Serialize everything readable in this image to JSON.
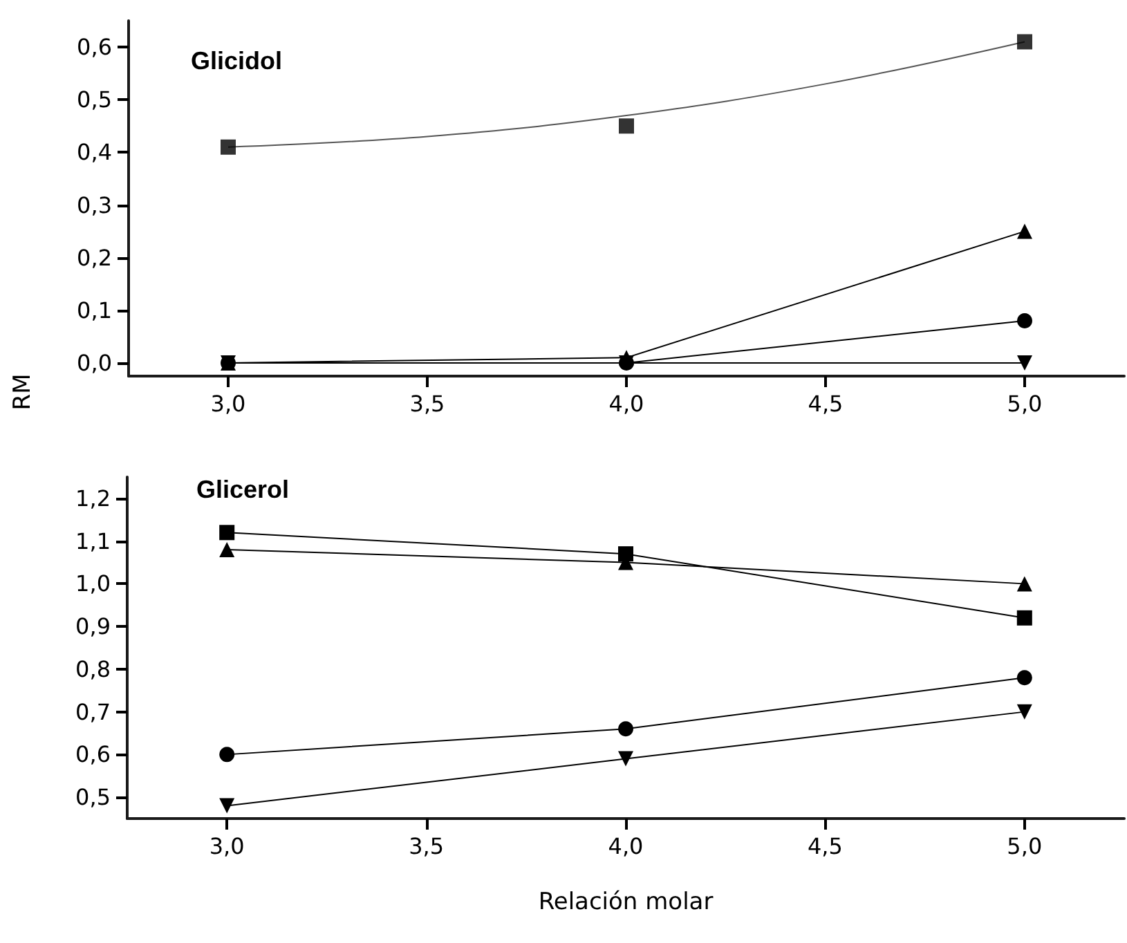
{
  "chart_data": [
    {
      "type": "line",
      "ylabel": "RM",
      "annotations": [
        "Glicidol"
      ],
      "x": [
        3.0,
        4.0,
        5.0
      ],
      "xlim": [
        2.75,
        5.25
      ],
      "xticks": [
        {
          "value": 3.0,
          "label": "3,0"
        },
        {
          "value": 3.5,
          "label": "3,5"
        },
        {
          "value": 4.0,
          "label": "4,0"
        },
        {
          "value": 4.5,
          "label": "4,5"
        },
        {
          "value": 5.0,
          "label": "5,0"
        }
      ],
      "ylim": [
        -0.025,
        0.65
      ],
      "yticks": [
        {
          "value": 0,
          "label": "0,0"
        },
        {
          "value": 0.1,
          "label": "0,1"
        },
        {
          "value": 0.2,
          "label": "0,2"
        },
        {
          "value": 0.3,
          "label": "0,3"
        },
        {
          "value": 0.4,
          "label": "0,4"
        },
        {
          "value": 0.5,
          "label": "0,5"
        },
        {
          "value": 0.6,
          "label": "0,6"
        }
      ],
      "grid": false,
      "line_style": "solid",
      "series": [
        {
          "color": "#000000",
          "marker": "triangle-down",
          "values": [
            0,
            0,
            0
          ]
        },
        {
          "color": "#000000",
          "marker": "triangle",
          "values": [
            0,
            0.01,
            0.25
          ]
        },
        {
          "color": "#000000",
          "marker": "circle",
          "values": [
            0,
            0,
            0.08
          ]
        },
        {
          "type": "line",
          "color": "#555555",
          "marker": "none",
          "x": [
            3.0,
            3.5,
            4.0,
            4.5,
            5.0
          ],
          "values": [
            0.41,
            0.43,
            0.47,
            0.53,
            0.61
          ]
        },
        {
          "type": "scatter",
          "color": "#000000",
          "marker": "square",
          "values": [
            0.41,
            0.45,
            0.61
          ]
        }
      ]
    },
    {
      "type": "line",
      "xlabel": "Relación molar",
      "annotations": [
        "Glicerol"
      ],
      "x": [
        3.0,
        4.0,
        5.0
      ],
      "xlim": [
        2.75,
        5.25
      ],
      "xticks": [
        {
          "value": 3.0,
          "label": "3,0"
        },
        {
          "value": 3.5,
          "label": "3,5"
        },
        {
          "value": 4.0,
          "label": "4,0"
        },
        {
          "value": 4.5,
          "label": "4,5"
        },
        {
          "value": 5.0,
          "label": "5,0"
        }
      ],
      "ylim": [
        0.45,
        1.25
      ],
      "yticks": [
        {
          "value": 0.5,
          "label": "0,5"
        },
        {
          "value": 0.6,
          "label": "0,6"
        },
        {
          "value": 0.7,
          "label": "0,7"
        },
        {
          "value": 0.8,
          "label": "0,8"
        },
        {
          "value": 0.9,
          "label": "0,9"
        },
        {
          "value": 1.0,
          "label": "1,0"
        },
        {
          "value": 1.1,
          "label": "1,1"
        },
        {
          "value": 1.2,
          "label": "1,2"
        }
      ],
      "grid": false,
      "line_style": "solid",
      "series": [
        {
          "color": "#000000",
          "marker": "square",
          "values": [
            1.12,
            1.07,
            0.92
          ]
        },
        {
          "color": "#000000",
          "marker": "triangle",
          "values": [
            1.08,
            1.05,
            1.0
          ]
        },
        {
          "color": "#000000",
          "marker": "circle",
          "values": [
            0.6,
            0.66,
            0.78
          ]
        },
        {
          "color": "#000000",
          "marker": "triangle-down",
          "values": [
            0.48,
            0.59,
            0.7
          ]
        }
      ]
    }
  ]
}
